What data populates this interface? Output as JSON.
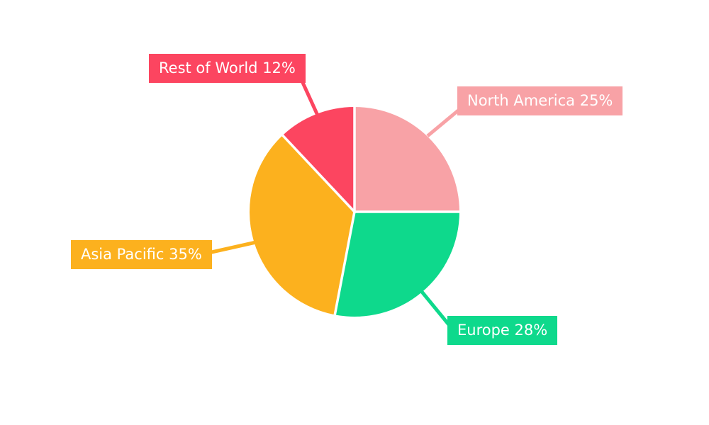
{
  "chart_data": {
    "type": "pie",
    "categories": [
      "North America",
      "Europe",
      "Asia Pacific",
      "Rest of World"
    ],
    "values": [
      25,
      28,
      35,
      12
    ],
    "slices": [
      {
        "label": "North America",
        "value": 25,
        "display": "North America 25%",
        "color": "#F8A2A6"
      },
      {
        "label": "Europe",
        "value": 28,
        "display": "Europe 28%",
        "color": "#0ED98C"
      },
      {
        "label": "Asia Pacific",
        "value": 35,
        "display": "Asia Pacific 35%",
        "color": "#FCB11E"
      },
      {
        "label": "Rest of World",
        "value": 12,
        "display": "Rest of World 12%",
        "color": "#FC4560"
      }
    ],
    "start_at": "top",
    "direction": "clockwise",
    "slice_gap_color": "#ffffff",
    "label_text_color": "#ffffff",
    "background": "#ffffff",
    "legend_position": "callout-labels"
  }
}
